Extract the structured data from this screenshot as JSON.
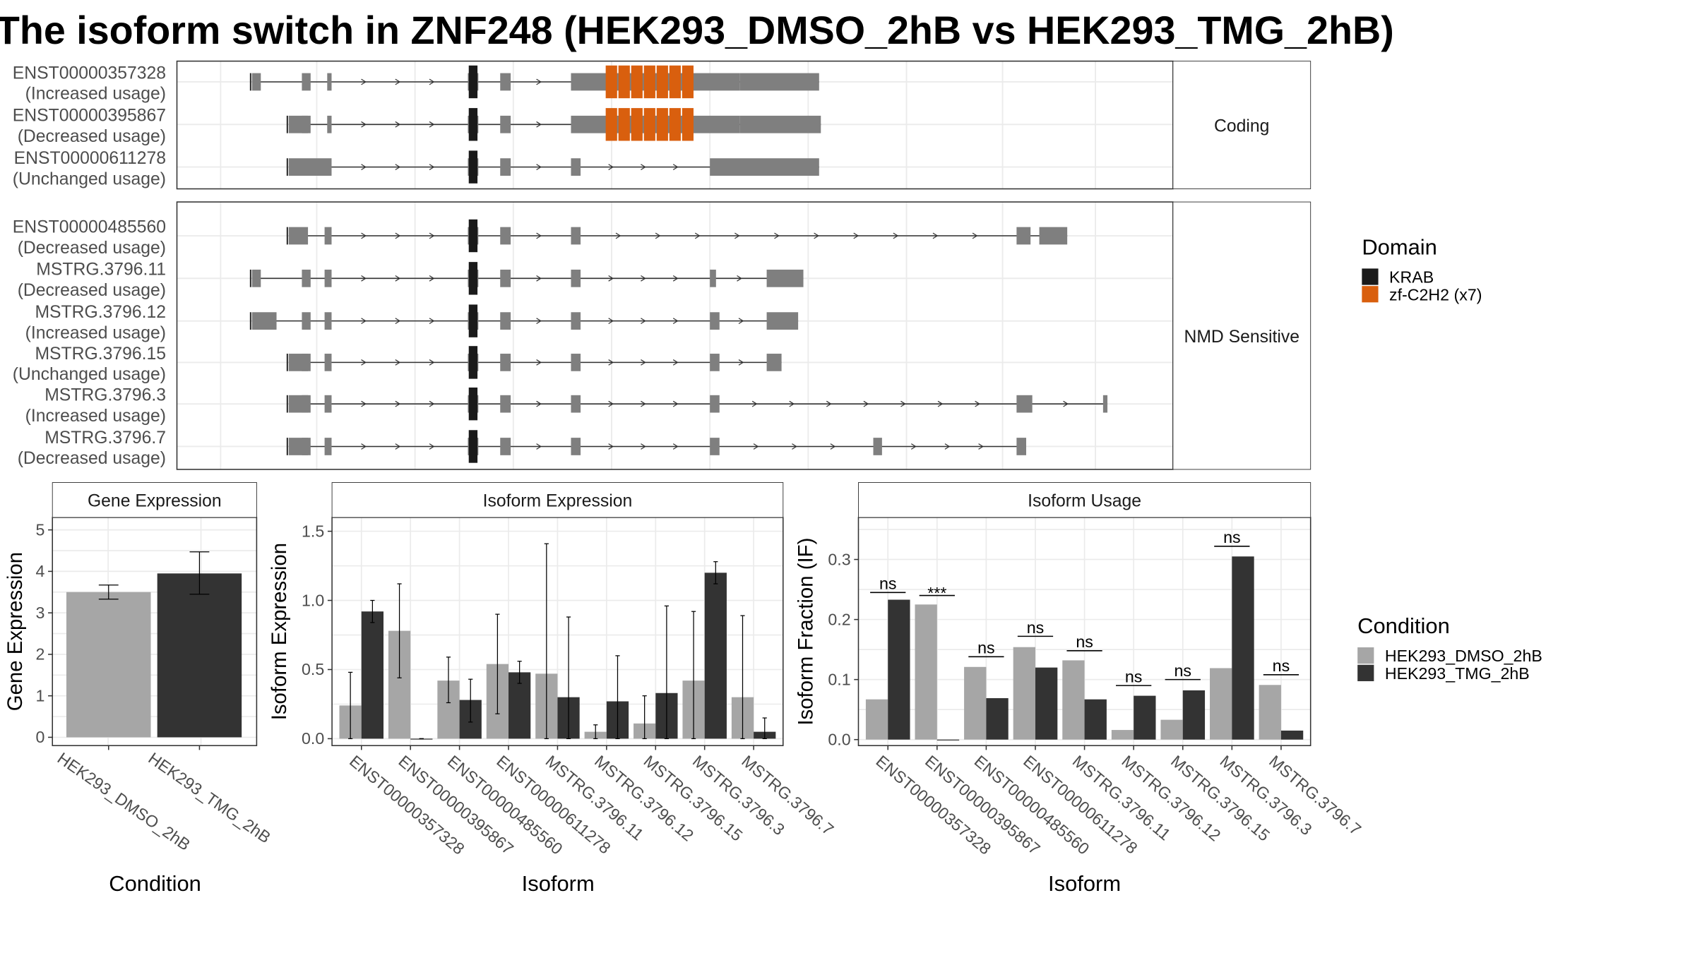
{
  "title": "The isoform switch in ZNF248 (HEK293_DMSO_2hB vs HEK293_TMG_2hB)",
  "colors": {
    "exon": "#7f7f7f",
    "krab": "#1a1a1a",
    "zf": "#d95f0e",
    "dmso": "#a6a6a6",
    "tmg": "#333333",
    "grid": "#ebebeb",
    "strip": "#ffffff"
  },
  "transcript_plot": {
    "x_range": [
      0,
      1000
    ],
    "panels": [
      {
        "strip": "Coding",
        "transcripts": [
          {
            "id": "ENST00000357328",
            "usage": "(Increased usage)",
            "exons": [
              [
                36,
                46
              ],
              [
                93,
                103
              ],
              [
                122,
                127
              ],
              [
                283,
                295
              ],
              [
                320,
                332
              ],
              [
                401,
                594
              ],
              [
                594,
                685
              ]
            ],
            "domains": [
              {
                "type": "krab",
                "start": 284,
                "end": 294
              },
              {
                "type": "zf",
                "start": 440,
                "end": 542
              }
            ]
          },
          {
            "id": "ENST00000395867",
            "usage": "(Decreased usage)",
            "exons": [
              [
                78,
                100
              ],
              [
                93,
                103
              ],
              [
                122,
                127
              ],
              [
                283,
                295
              ],
              [
                320,
                332
              ],
              [
                401,
                594
              ],
              [
                594,
                687
              ]
            ],
            "domains": [
              {
                "type": "krab",
                "start": 284,
                "end": 294
              },
              {
                "type": "zf",
                "start": 440,
                "end": 542
              }
            ]
          },
          {
            "id": "ENST00000611278",
            "usage": "(Unchanged usage)",
            "exons": [
              [
                78,
                127
              ],
              [
                283,
                295
              ],
              [
                320,
                332
              ],
              [
                401,
                412
              ],
              [
                560,
                685
              ]
            ],
            "domains": [
              {
                "type": "krab",
                "start": 284,
                "end": 294
              }
            ]
          }
        ]
      },
      {
        "strip": "NMD Sensitive",
        "transcripts": [
          {
            "id": "ENST00000485560",
            "usage": "(Decreased usage)",
            "exons": [
              [
                78,
                100
              ],
              [
                119,
                127
              ],
              [
                283,
                295
              ],
              [
                320,
                332
              ],
              [
                401,
                412
              ],
              [
                911,
                927
              ],
              [
                937,
                969
              ]
            ],
            "domains": [
              {
                "type": "krab",
                "start": 284,
                "end": 294
              }
            ]
          },
          {
            "id": "MSTRG.3796.11",
            "usage": "(Decreased usage)",
            "exons": [
              [
                36,
                46
              ],
              [
                93,
                103
              ],
              [
                119,
                127
              ],
              [
                283,
                295
              ],
              [
                320,
                332
              ],
              [
                401,
                412
              ],
              [
                560,
                567
              ],
              [
                625,
                667
              ]
            ],
            "domains": [
              {
                "type": "krab",
                "start": 284,
                "end": 294
              }
            ]
          },
          {
            "id": "MSTRG.3796.12",
            "usage": "(Increased usage)",
            "exons": [
              [
                36,
                64
              ],
              [
                93,
                103
              ],
              [
                119,
                127
              ],
              [
                283,
                295
              ],
              [
                320,
                332
              ],
              [
                401,
                412
              ],
              [
                560,
                571
              ],
              [
                625,
                661
              ]
            ],
            "domains": [
              {
                "type": "krab",
                "start": 284,
                "end": 294
              }
            ]
          },
          {
            "id": "MSTRG.3796.15",
            "usage": "(Unchanged usage)",
            "exons": [
              [
                78,
                100
              ],
              [
                93,
                103
              ],
              [
                119,
                127
              ],
              [
                283,
                295
              ],
              [
                320,
                332
              ],
              [
                401,
                412
              ],
              [
                560,
                571
              ],
              [
                625,
                642
              ]
            ],
            "domains": [
              {
                "type": "krab",
                "start": 284,
                "end": 294
              }
            ]
          },
          {
            "id": "MSTRG.3796.3",
            "usage": "(Increased usage)",
            "exons": [
              [
                78,
                100
              ],
              [
                93,
                103
              ],
              [
                119,
                127
              ],
              [
                283,
                295
              ],
              [
                320,
                332
              ],
              [
                401,
                412
              ],
              [
                560,
                571
              ],
              [
                911,
                929
              ],
              [
                1010,
                1015
              ]
            ],
            "domains": [
              {
                "type": "krab",
                "start": 284,
                "end": 294
              }
            ]
          },
          {
            "id": "MSTRG.3796.7",
            "usage": "(Decreased usage)",
            "exons": [
              [
                78,
                100
              ],
              [
                93,
                103
              ],
              [
                119,
                127
              ],
              [
                283,
                295
              ],
              [
                320,
                332
              ],
              [
                401,
                412
              ],
              [
                560,
                571
              ],
              [
                747,
                757
              ],
              [
                911,
                922
              ]
            ],
            "domains": [
              {
                "type": "krab",
                "start": 284,
                "end": 294
              }
            ]
          }
        ]
      }
    ]
  },
  "legend_domain": {
    "title": "Domain",
    "items": [
      {
        "label": "KRAB",
        "color": "#1a1a1a"
      },
      {
        "label": "zf-C2H2 (x7)",
        "color": "#d95f0e"
      }
    ]
  },
  "legend_condition": {
    "title": "Condition",
    "items": [
      {
        "label": "HEK293_DMSO_2hB",
        "color": "#a6a6a6"
      },
      {
        "label": "HEK293_TMG_2hB",
        "color": "#333333"
      }
    ]
  },
  "chart_data": [
    {
      "type": "bar",
      "title": "Gene Expression",
      "xlabel": "Condition",
      "ylabel": "Gene Expression",
      "ylim": [
        -0.2,
        5.3
      ],
      "yticks": [
        0,
        1,
        2,
        3,
        4,
        5
      ],
      "categories": [
        "HEK293_DMSO_2hB",
        "HEK293_TMG_2hB"
      ],
      "values": [
        3.5,
        3.95
      ],
      "err_low": [
        3.33,
        3.45
      ],
      "err_high": [
        3.67,
        4.47
      ]
    },
    {
      "type": "bar",
      "title": "Isoform Expression",
      "xlabel": "Isoform",
      "ylabel": "Isoform Expression",
      "ylim": [
        -0.05,
        1.6
      ],
      "yticks": [
        0.0,
        0.5,
        1.0,
        1.5
      ],
      "categories": [
        "ENST00000357328",
        "ENST00000395867",
        "ENST00000485560",
        "ENST00000611278",
        "MSTRG.3796.11",
        "MSTRG.3796.12",
        "MSTRG.3796.15",
        "MSTRG.3796.3",
        "MSTRG.3796.7"
      ],
      "series": [
        {
          "name": "HEK293_DMSO_2hB",
          "values": [
            0.24,
            0.78,
            0.42,
            0.54,
            0.47,
            0.05,
            0.11,
            0.42,
            0.3
          ],
          "err_low": [
            0.0,
            0.44,
            0.26,
            0.18,
            0.0,
            0.0,
            0.0,
            0.0,
            0.0
          ],
          "err_high": [
            0.48,
            1.12,
            0.59,
            0.9,
            1.41,
            0.1,
            0.31,
            0.92,
            0.89
          ]
        },
        {
          "name": "HEK293_TMG_2hB",
          "values": [
            0.92,
            0.0,
            0.28,
            0.48,
            0.3,
            0.27,
            0.33,
            1.2,
            0.05
          ],
          "err_low": [
            0.84,
            0.0,
            0.12,
            0.4,
            0.0,
            0.0,
            0.0,
            1.12,
            0.0
          ],
          "err_high": [
            1.0,
            0.0,
            0.43,
            0.56,
            0.88,
            0.6,
            0.96,
            1.28,
            0.15
          ]
        }
      ]
    },
    {
      "type": "bar",
      "title": "Isoform Usage",
      "xlabel": "Isoform",
      "ylabel": "Isoform Fraction (IF)",
      "ylim": [
        -0.01,
        0.37
      ],
      "yticks": [
        0.0,
        0.1,
        0.2,
        0.3
      ],
      "categories": [
        "ENST00000357328",
        "ENST00000395867",
        "ENST00000485560",
        "ENST00000611278",
        "MSTRG.3796.11",
        "MSTRG.3796.12",
        "MSTRG.3796.15",
        "MSTRG.3796.3",
        "MSTRG.3796.7"
      ],
      "series": [
        {
          "name": "HEK293_DMSO_2hB",
          "values": [
            0.067,
            0.225,
            0.121,
            0.154,
            0.132,
            0.016,
            0.033,
            0.119,
            0.091
          ]
        },
        {
          "name": "HEK293_TMG_2hB",
          "values": [
            0.233,
            0.0,
            0.069,
            0.12,
            0.067,
            0.073,
            0.082,
            0.305,
            0.015
          ]
        }
      ],
      "significance": [
        "ns",
        "***",
        "ns",
        "ns",
        "ns",
        "ns",
        "ns",
        "ns",
        "ns"
      ],
      "sig_y": [
        0.245,
        0.24,
        0.138,
        0.172,
        0.148,
        0.09,
        0.1,
        0.322,
        0.108
      ]
    }
  ]
}
